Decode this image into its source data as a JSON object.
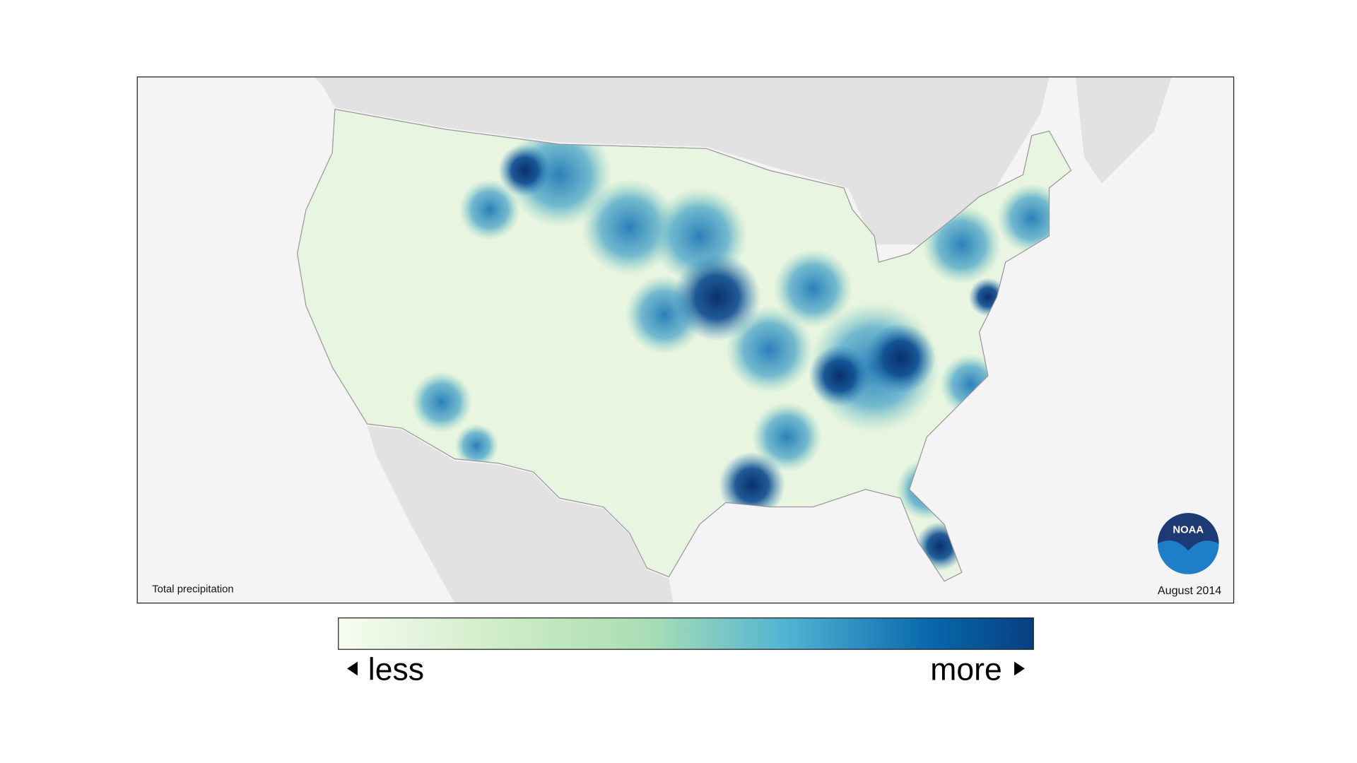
{
  "map": {
    "caption": "Total precipitation",
    "date": "August 2014",
    "logo": "NOAA"
  },
  "legend": {
    "low": "less",
    "high": "more"
  }
}
